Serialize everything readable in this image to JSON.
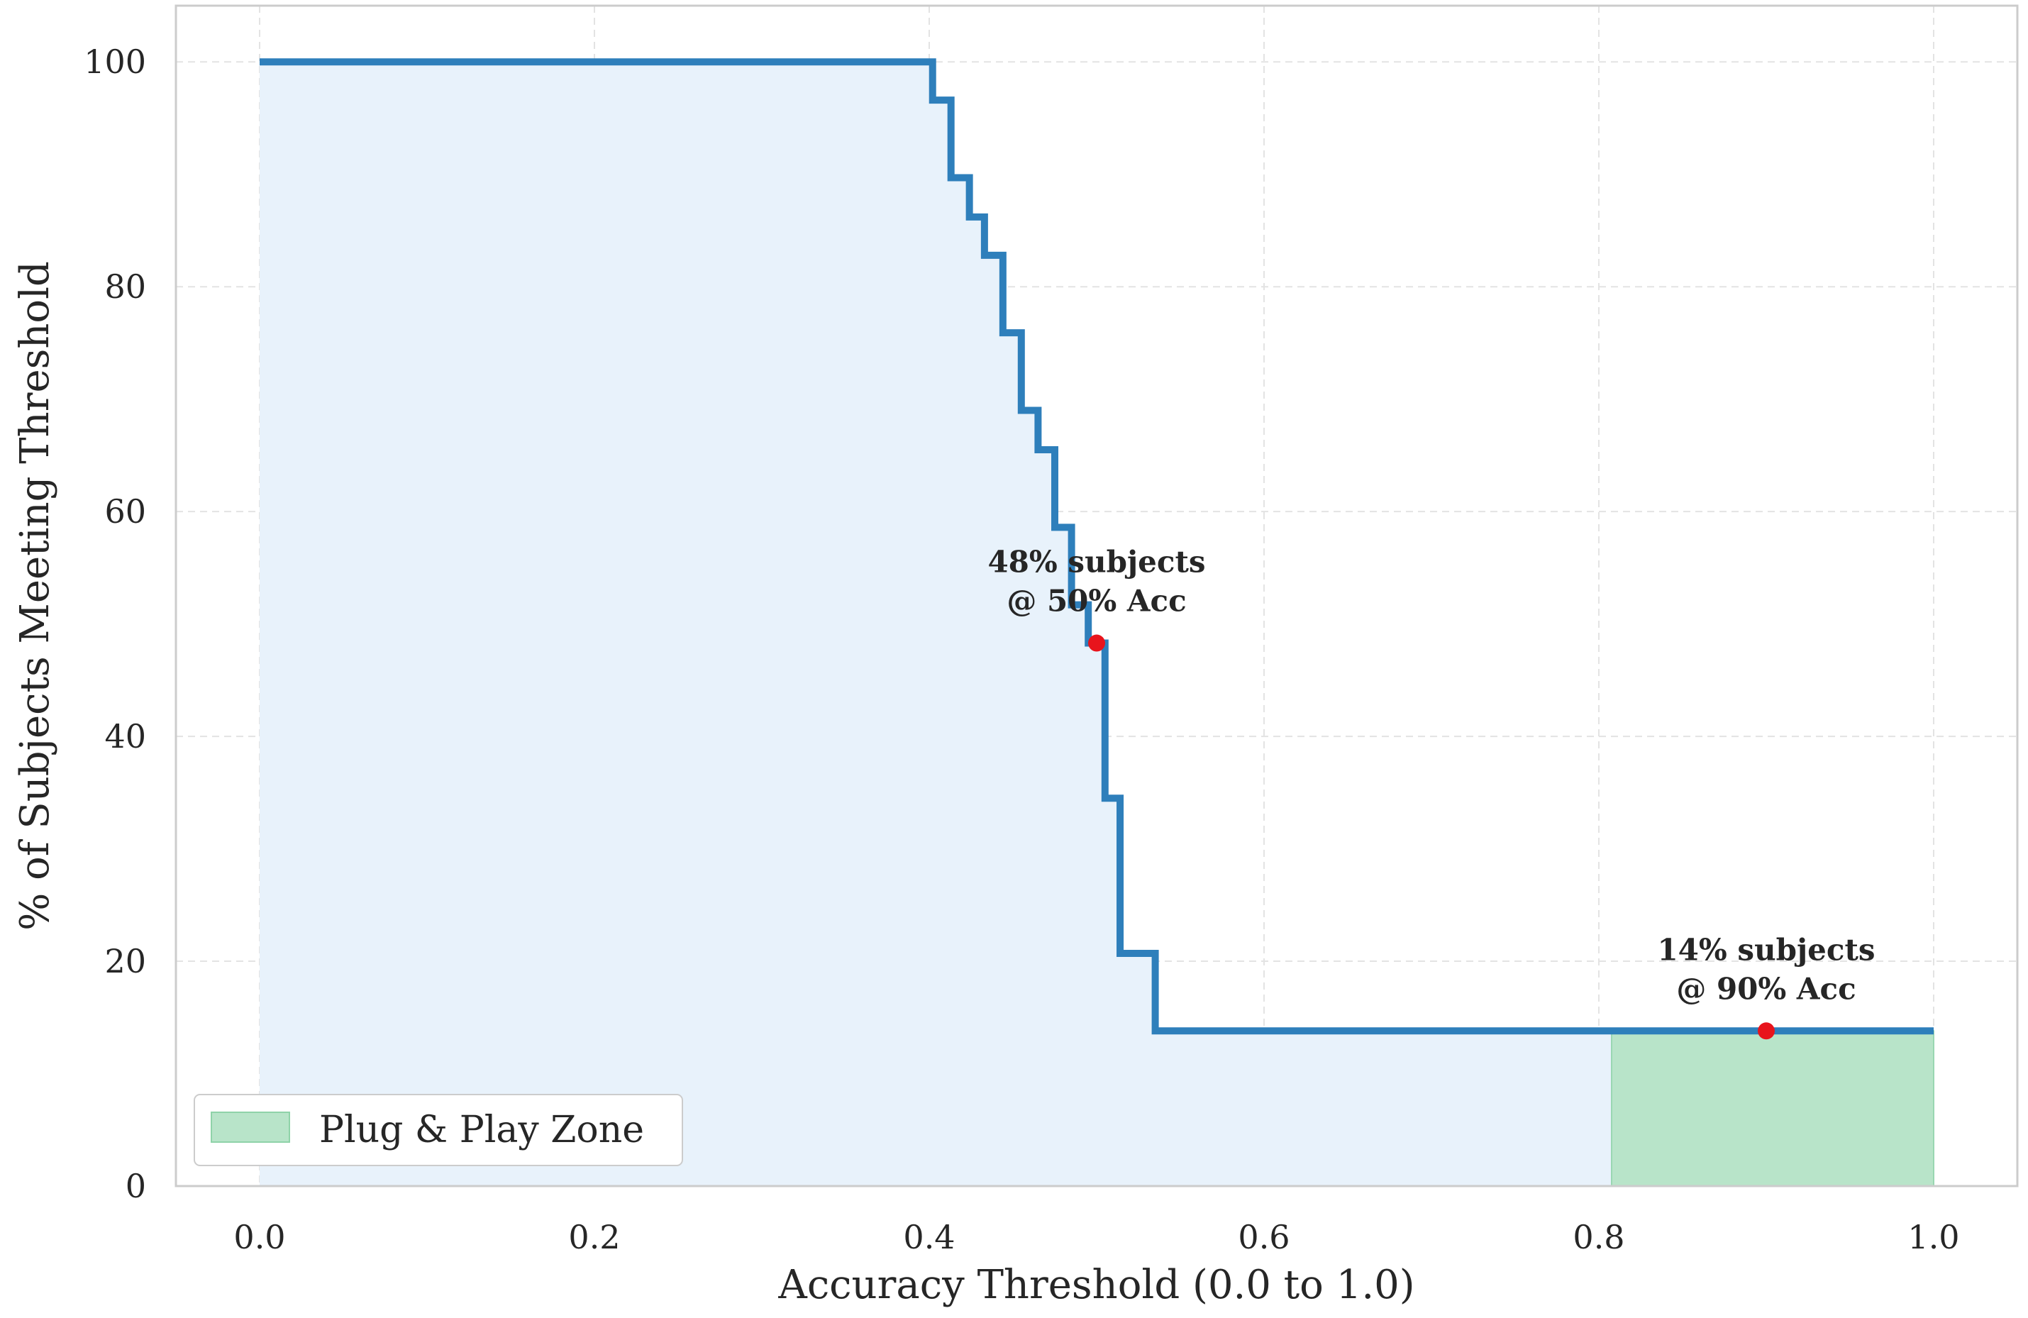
{
  "chart_data": {
    "type": "line",
    "title": "",
    "xlabel": "Accuracy Threshold (0.0 to 1.0)",
    "ylabel": "% of Subjects Meeting Threshold",
    "xlim": [
      -0.05,
      1.05
    ],
    "ylim": [
      0,
      105
    ],
    "grid": true,
    "x_ticks": [
      "0.0",
      "0.2",
      "0.4",
      "0.6",
      "0.8",
      "1.0"
    ],
    "y_ticks": [
      "0",
      "20",
      "40",
      "60",
      "80",
      "100"
    ],
    "series": [
      {
        "type": "step",
        "color": "#2e7fbb",
        "fill_color": "#e8f2fb",
        "points": [
          [
            0.0,
            100
          ],
          [
            0.402,
            100
          ],
          [
            0.402,
            96.6
          ],
          [
            0.413,
            96.6
          ],
          [
            0.413,
            89.7
          ],
          [
            0.424,
            89.7
          ],
          [
            0.424,
            86.2
          ],
          [
            0.433,
            86.2
          ],
          [
            0.433,
            82.8
          ],
          [
            0.444,
            82.8
          ],
          [
            0.444,
            75.9
          ],
          [
            0.455,
            75.9
          ],
          [
            0.455,
            69.0
          ],
          [
            0.465,
            69.0
          ],
          [
            0.465,
            65.5
          ],
          [
            0.475,
            65.5
          ],
          [
            0.475,
            58.6
          ],
          [
            0.485,
            58.6
          ],
          [
            0.485,
            51.7
          ],
          [
            0.495,
            51.7
          ],
          [
            0.495,
            48.3
          ],
          [
            0.505,
            48.3
          ],
          [
            0.505,
            34.5
          ],
          [
            0.514,
            34.5
          ],
          [
            0.514,
            20.7
          ],
          [
            0.535,
            20.7
          ],
          [
            0.535,
            13.8
          ],
          [
            1.0,
            13.8
          ]
        ]
      }
    ],
    "highlight_zone": {
      "name": "Plug & Play Zone",
      "x_range": [
        0.8,
        1.0
      ],
      "color": "#b8e4c9"
    },
    "markers": [
      {
        "x": 0.5,
        "y": 48.3,
        "color": "#e8141c"
      },
      {
        "x": 0.9,
        "y": 13.8,
        "color": "#e8141c"
      }
    ],
    "annotations": [
      {
        "lines": [
          "48% subjects",
          "@ 50% Acc"
        ],
        "x": 0.5,
        "y": 48.3
      },
      {
        "lines": [
          "14% subjects",
          "@ 90% Acc"
        ],
        "x": 0.9,
        "y": 13.8
      }
    ],
    "legend": {
      "location": "lower-left",
      "entries": [
        "Plug & Play Zone"
      ]
    }
  }
}
